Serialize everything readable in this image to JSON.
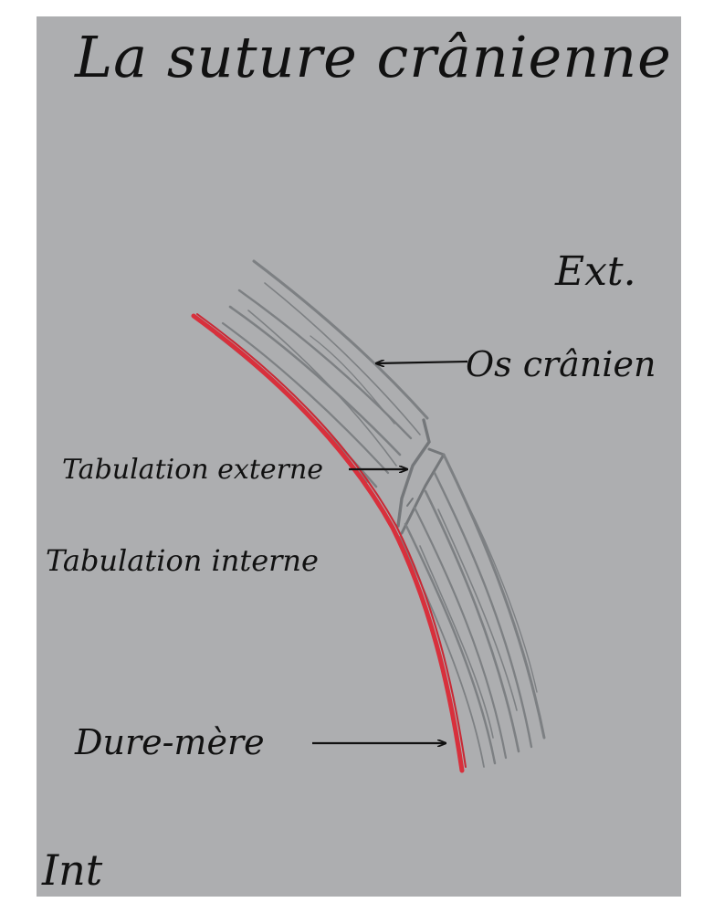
{
  "title": "La suture crânienne",
  "labels": {
    "exterior": "Ext.",
    "cranial_bone": "Os crânien",
    "outer_table": "Tabulation externe",
    "inner_table": "Tabulation interne",
    "dura_mater": "Dure-mère",
    "interior": "Int"
  },
  "colors": {
    "paper": "#adaeb0",
    "bone_strokes": "#7d8083",
    "dura_mater": "#d8303c",
    "ink": "#111111"
  }
}
